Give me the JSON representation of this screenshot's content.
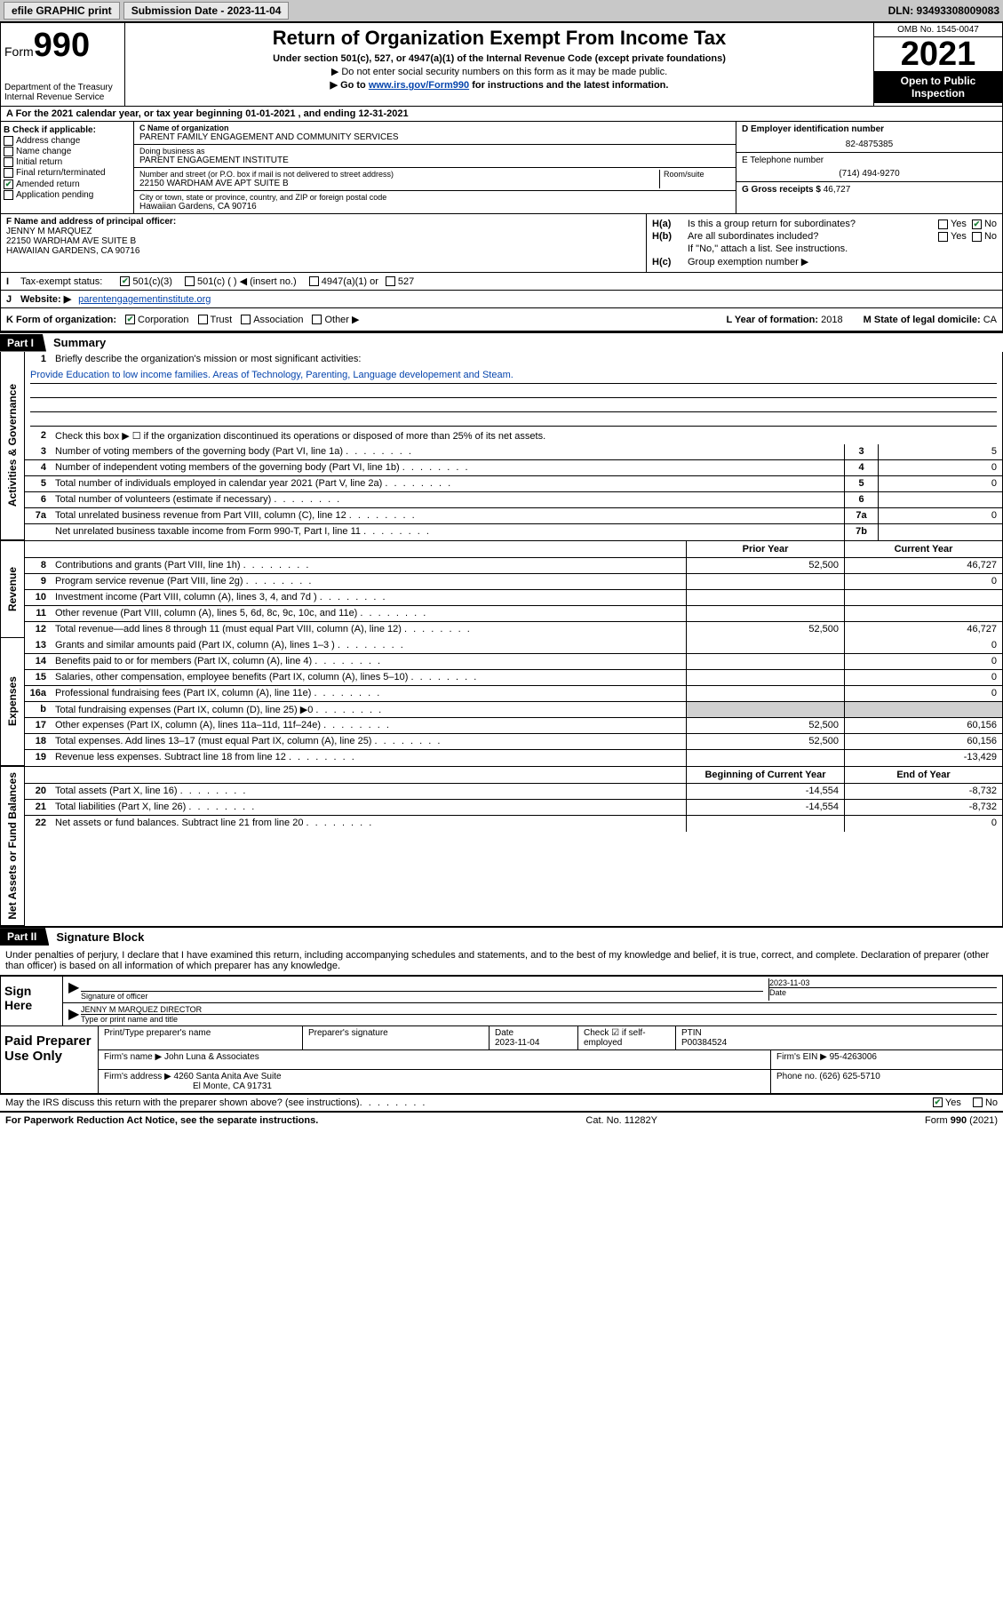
{
  "top": {
    "efile": "efile GRAPHIC print",
    "submission_label": "Submission Date - 2023-11-04",
    "dln": "DLN: 93493308009083"
  },
  "header": {
    "form_prefix": "Form",
    "form_number": "990",
    "dept": "Department of the Treasury",
    "irs": "Internal Revenue Service",
    "title": "Return of Organization Exempt From Income Tax",
    "subtitle": "Under section 501(c), 527, or 4947(a)(1) of the Internal Revenue Code (except private foundations)",
    "note1": "▶ Do not enter social security numbers on this form as it may be made public.",
    "note2_pre": "▶ Go to ",
    "note2_link": "www.irs.gov/Form990",
    "note2_post": " for instructions and the latest information.",
    "omb": "OMB No. 1545-0047",
    "year": "2021",
    "open": "Open to Public Inspection"
  },
  "row_a": "A For the 2021 calendar year, or tax year beginning 01-01-2021   , and ending 12-31-2021",
  "col_b": {
    "hdr": "B Check if applicable:",
    "items": [
      "Address change",
      "Name change",
      "Initial return",
      "Final return/terminated",
      "Amended return",
      "Application pending"
    ],
    "checked_index": 4
  },
  "col_c": {
    "name_lbl": "C Name of organization",
    "name": "PARENT FAMILY ENGAGEMENT AND COMMUNITY SERVICES",
    "dba_lbl": "Doing business as",
    "dba": "PARENT ENGAGEMENT INSTITUTE",
    "addr_lbl": "Number and street (or P.O. box if mail is not delivered to street address)",
    "room_lbl": "Room/suite",
    "addr": "22150 WARDHAM AVE APT SUITE B",
    "city_lbl": "City or town, state or province, country, and ZIP or foreign postal code",
    "city": "Hawaiian Gardens, CA  90716"
  },
  "col_de": {
    "d_lbl": "D Employer identification number",
    "d_val": "82-4875385",
    "e_lbl": "E Telephone number",
    "e_val": "(714) 494-9270",
    "g_lbl": "G Gross receipts $ ",
    "g_val": "46,727"
  },
  "block_f": {
    "lbl": "F Name and address of principal officer:",
    "name": "JENNY M MARQUEZ",
    "addr1": "22150 WARDHAM AVE SUITE B",
    "addr2": "HAWAIIAN GARDENS, CA  90716"
  },
  "block_h": {
    "ha_lbl": "H(a)",
    "ha_txt": "Is this a group return for subordinates?",
    "hb_lbl": "H(b)",
    "hb_txt": "Are all subordinates included?",
    "hb_note": "If \"No,\" attach a list. See instructions.",
    "hc_lbl": "H(c)",
    "hc_txt": "Group exemption number ▶",
    "yes": "Yes",
    "no": "No"
  },
  "row_i": {
    "lbl": "I",
    "txt": "Tax-exempt status:",
    "opts": [
      "501(c)(3)",
      "501(c) (  ) ◀ (insert no.)",
      "4947(a)(1) or",
      "527"
    ],
    "checked": 0
  },
  "row_j": {
    "lbl": "J",
    "txt": "Website: ▶",
    "val": "parentengagementinstitute.org"
  },
  "row_k": {
    "lbl": "K Form of organization:",
    "opts": [
      "Corporation",
      "Trust",
      "Association",
      "Other ▶"
    ],
    "checked": 0,
    "l_lbl": "L Year of formation: ",
    "l_val": "2018",
    "m_lbl": "M State of legal domicile: ",
    "m_val": "CA"
  },
  "part1": {
    "hdr": "Part I",
    "title": "Summary",
    "tab_ag": "Activities & Governance",
    "tab_rev": "Revenue",
    "tab_exp": "Expenses",
    "tab_net": "Net Assets or Fund Balances",
    "l1_lbl": "1",
    "l1": "Briefly describe the organization's mission or most significant activities:",
    "l1_val": "Provide Education to low income families. Areas of Technology, Parenting, Language developement and Steam.",
    "l2_lbl": "2",
    "l2": "Check this box ▶ ☐  if the organization discontinued its operations or disposed of more than 25% of its net assets.",
    "lines_ag": [
      {
        "n": "3",
        "d": "Number of voting members of the governing body (Part VI, line 1a)",
        "box": "3",
        "v": "5"
      },
      {
        "n": "4",
        "d": "Number of independent voting members of the governing body (Part VI, line 1b)",
        "box": "4",
        "v": "0"
      },
      {
        "n": "5",
        "d": "Total number of individuals employed in calendar year 2021 (Part V, line 2a)",
        "box": "5",
        "v": "0"
      },
      {
        "n": "6",
        "d": "Total number of volunteers (estimate if necessary)",
        "box": "6",
        "v": ""
      },
      {
        "n": "7a",
        "d": "Total unrelated business revenue from Part VIII, column (C), line 12",
        "box": "7a",
        "v": "0"
      },
      {
        "n": "",
        "d": "Net unrelated business taxable income from Form 990-T, Part I, line 11",
        "box": "7b",
        "v": ""
      }
    ],
    "col_prior": "Prior Year",
    "col_curr": "Current Year",
    "lines_rev": [
      {
        "n": "8",
        "d": "Contributions and grants (Part VIII, line 1h)",
        "p": "52,500",
        "c": "46,727"
      },
      {
        "n": "9",
        "d": "Program service revenue (Part VIII, line 2g)",
        "p": "",
        "c": "0"
      },
      {
        "n": "10",
        "d": "Investment income (Part VIII, column (A), lines 3, 4, and 7d )",
        "p": "",
        "c": ""
      },
      {
        "n": "11",
        "d": "Other revenue (Part VIII, column (A), lines 5, 6d, 8c, 9c, 10c, and 11e)",
        "p": "",
        "c": ""
      },
      {
        "n": "12",
        "d": "Total revenue—add lines 8 through 11 (must equal Part VIII, column (A), line 12)",
        "p": "52,500",
        "c": "46,727"
      }
    ],
    "lines_exp": [
      {
        "n": "13",
        "d": "Grants and similar amounts paid (Part IX, column (A), lines 1–3 )",
        "p": "",
        "c": "0"
      },
      {
        "n": "14",
        "d": "Benefits paid to or for members (Part IX, column (A), line 4)",
        "p": "",
        "c": "0"
      },
      {
        "n": "15",
        "d": "Salaries, other compensation, employee benefits (Part IX, column (A), lines 5–10)",
        "p": "",
        "c": "0"
      },
      {
        "n": "16a",
        "d": "Professional fundraising fees (Part IX, column (A), line 11e)",
        "p": "",
        "c": "0"
      },
      {
        "n": "b",
        "d": "Total fundraising expenses (Part IX, column (D), line 25) ▶0",
        "p": "shade",
        "c": "shade"
      },
      {
        "n": "17",
        "d": "Other expenses (Part IX, column (A), lines 11a–11d, 11f–24e)",
        "p": "52,500",
        "c": "60,156"
      },
      {
        "n": "18",
        "d": "Total expenses. Add lines 13–17 (must equal Part IX, column (A), line 25)",
        "p": "52,500",
        "c": "60,156"
      },
      {
        "n": "19",
        "d": "Revenue less expenses. Subtract line 18 from line 12",
        "p": "",
        "c": "-13,429"
      }
    ],
    "col_beg": "Beginning of Current Year",
    "col_end": "End of Year",
    "lines_net": [
      {
        "n": "20",
        "d": "Total assets (Part X, line 16)",
        "p": "-14,554",
        "c": "-8,732"
      },
      {
        "n": "21",
        "d": "Total liabilities (Part X, line 26)",
        "p": "-14,554",
        "c": "-8,732"
      },
      {
        "n": "22",
        "d": "Net assets or fund balances. Subtract line 21 from line 20",
        "p": "",
        "c": "0"
      }
    ]
  },
  "part2": {
    "hdr": "Part II",
    "title": "Signature Block",
    "decl": "Under penalties of perjury, I declare that I have examined this return, including accompanying schedules and statements, and to the best of my knowledge and belief, it is true, correct, and complete. Declaration of preparer (other than officer) is based on all information of which preparer has any knowledge.",
    "sign_here": "Sign Here",
    "sig_of_officer": "Signature of officer",
    "sig_date": "2023-11-03",
    "date_lbl": "Date",
    "officer_name": "JENNY M MARQUEZ  DIRECTOR",
    "type_name_lbl": "Type or print name and title",
    "paid_prep": "Paid Preparer Use Only",
    "prep_hdrs": [
      "Print/Type preparer's name",
      "Preparer's signature",
      "Date",
      "",
      "PTIN"
    ],
    "prep_date": "2023-11-04",
    "prep_check_lbl": "Check ☑ if self-employed",
    "prep_ptin": "P00384524",
    "firm_name_lbl": "Firm's name   ▶ ",
    "firm_name": "John Luna & Associates",
    "firm_ein_lbl": "Firm's EIN ▶ ",
    "firm_ein": "95-4263006",
    "firm_addr_lbl": "Firm's address ▶ ",
    "firm_addr1": "4260 Santa Anita Ave Suite",
    "firm_addr2": "El Monte, CA  91731",
    "phone_lbl": "Phone no. ",
    "phone": "(626) 625-5710",
    "discuss": "May the IRS discuss this return with the preparer shown above? (see instructions)",
    "yes": "Yes",
    "no": "No"
  },
  "footer": {
    "pra": "For Paperwork Reduction Act Notice, see the separate instructions.",
    "cat": "Cat. No. 11282Y",
    "form": "Form 990 (2021)"
  }
}
